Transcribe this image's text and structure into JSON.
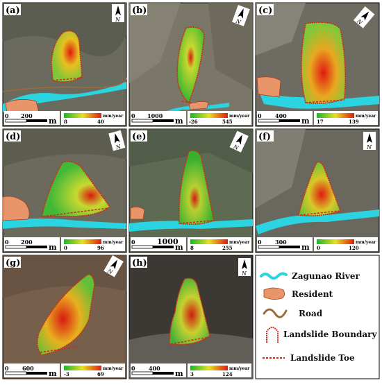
{
  "figure": {
    "panels": [
      {
        "id": "a",
        "label": "(a)",
        "scale_ticks": [
          "0",
          "200",
          "m"
        ],
        "colorbar": {
          "min": "8",
          "max": "40",
          "unit": "mm/year"
        }
      },
      {
        "id": "b",
        "label": "(b)",
        "scale_ticks": [
          "0",
          "1000",
          "m"
        ],
        "colorbar": {
          "min": "-26",
          "max": "545",
          "unit": "mm/year"
        }
      },
      {
        "id": "c",
        "label": "(c)",
        "scale_ticks": [
          "0",
          "400",
          "m"
        ],
        "colorbar": {
          "min": "17",
          "max": "139",
          "unit": "mm/year"
        }
      },
      {
        "id": "d",
        "label": "(d)",
        "scale_ticks": [
          "0",
          "200",
          "m"
        ],
        "colorbar": {
          "min": "0",
          "max": "96",
          "unit": "mm/year"
        }
      },
      {
        "id": "e",
        "label": "(e)",
        "scale_ticks": [
          "0",
          "1000",
          "m"
        ],
        "colorbar": {
          "min": "8",
          "max": "255",
          "unit": "mm/year"
        }
      },
      {
        "id": "f",
        "label": "(f)",
        "scale_ticks": [
          "0",
          "300",
          "m"
        ],
        "colorbar": {
          "min": "0",
          "max": "120",
          "unit": "mm/year"
        }
      },
      {
        "id": "g",
        "label": "(g)",
        "scale_ticks": [
          "0",
          "600",
          "m"
        ],
        "colorbar": {
          "min": "-3",
          "max": "69",
          "unit": "mm/year"
        }
      },
      {
        "id": "h",
        "label": "(h)",
        "scale_ticks": [
          "0",
          "400",
          "m"
        ],
        "colorbar": {
          "min": "3",
          "max": "124",
          "unit": "mm/year"
        }
      }
    ],
    "north_arrow_label": "N",
    "legend": {
      "river": "Zagunao River",
      "resident": "Resident",
      "road": "Road",
      "boundary": "Landslide Boundary",
      "toe": "Landslide Toe"
    },
    "colors": {
      "river": "#2ad4e0",
      "resident": "#e8956a",
      "road": "#a06a3a",
      "boundary": "#d02a1a",
      "ramp_low": "#19b82a",
      "ramp_mid": "#e8e020",
      "ramp_high": "#e01a10"
    }
  }
}
